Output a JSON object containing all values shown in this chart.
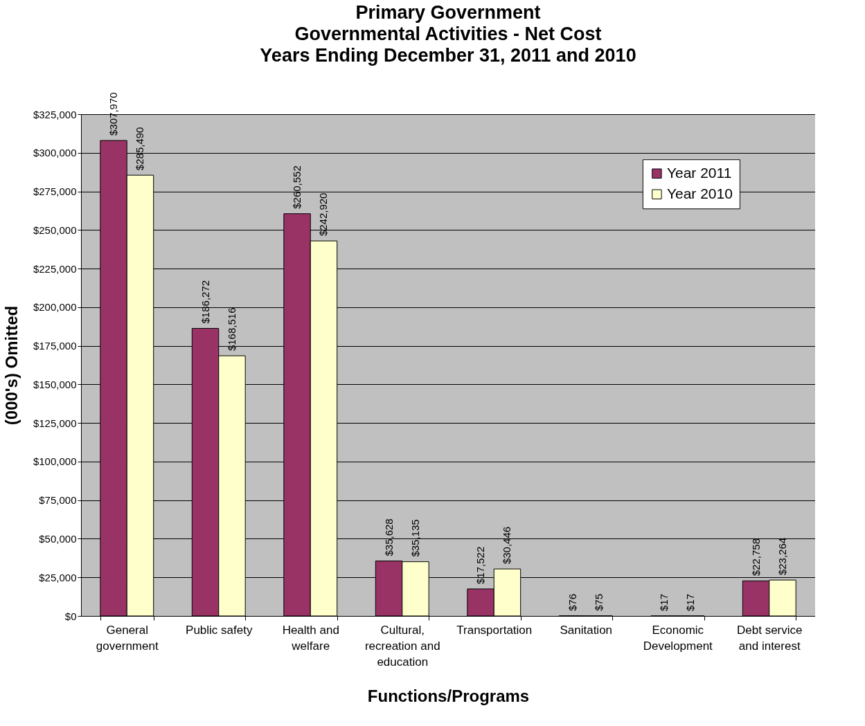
{
  "chart_data": {
    "type": "bar",
    "title": "Primary Government\nGovernmental Activities - Net Cost\nYears Ending December 31, 2011 and 2010",
    "xlabel": "Functions/Programs",
    "ylabel": "(000's) Omitted",
    "categories": [
      "General government",
      "Public safety",
      "Health and welfare",
      "Cultural, recreation and education",
      "Transportation",
      "Sanitation",
      "Economic Development",
      "Debt service and interest"
    ],
    "series": [
      {
        "name": "Year 2011",
        "color": "#993366",
        "values": [
          307970,
          186272,
          260552,
          35628,
          17522,
          76,
          17,
          22758
        ],
        "value_labels": [
          "$307,970",
          "$186,272",
          "$260,552",
          "$35,628",
          "$17,522",
          "$76",
          "$17",
          "$22,758"
        ]
      },
      {
        "name": "Year 2010",
        "color": "#ffffcc",
        "values": [
          285490,
          168516,
          242920,
          35135,
          30446,
          75,
          17,
          23264
        ],
        "value_labels": [
          "$285,490",
          "$168,516",
          "$242,920",
          "$35,135",
          "$30,446",
          "$75",
          "$17",
          "$23,264"
        ]
      }
    ],
    "ylim": [
      0,
      325000
    ],
    "yticks": [
      {
        "value": 0,
        "label": "$0"
      },
      {
        "value": 25000,
        "label": "$25,000"
      },
      {
        "value": 50000,
        "label": "$50,000"
      },
      {
        "value": 75000,
        "label": "$75,000"
      },
      {
        "value": 100000,
        "label": "$100,000"
      },
      {
        "value": 125000,
        "label": "$125,000"
      },
      {
        "value": 150000,
        "label": "$150,000"
      },
      {
        "value": 175000,
        "label": "$175,000"
      },
      {
        "value": 200000,
        "label": "$200,000"
      },
      {
        "value": 225000,
        "label": "$225,000"
      },
      {
        "value": 250000,
        "label": "$250,000"
      },
      {
        "value": 275000,
        "label": "$275,000"
      },
      {
        "value": 300000,
        "label": "$300,000"
      },
      {
        "value": 325000,
        "label": "$325,000"
      }
    ],
    "grid": "y",
    "legend": "top right"
  }
}
